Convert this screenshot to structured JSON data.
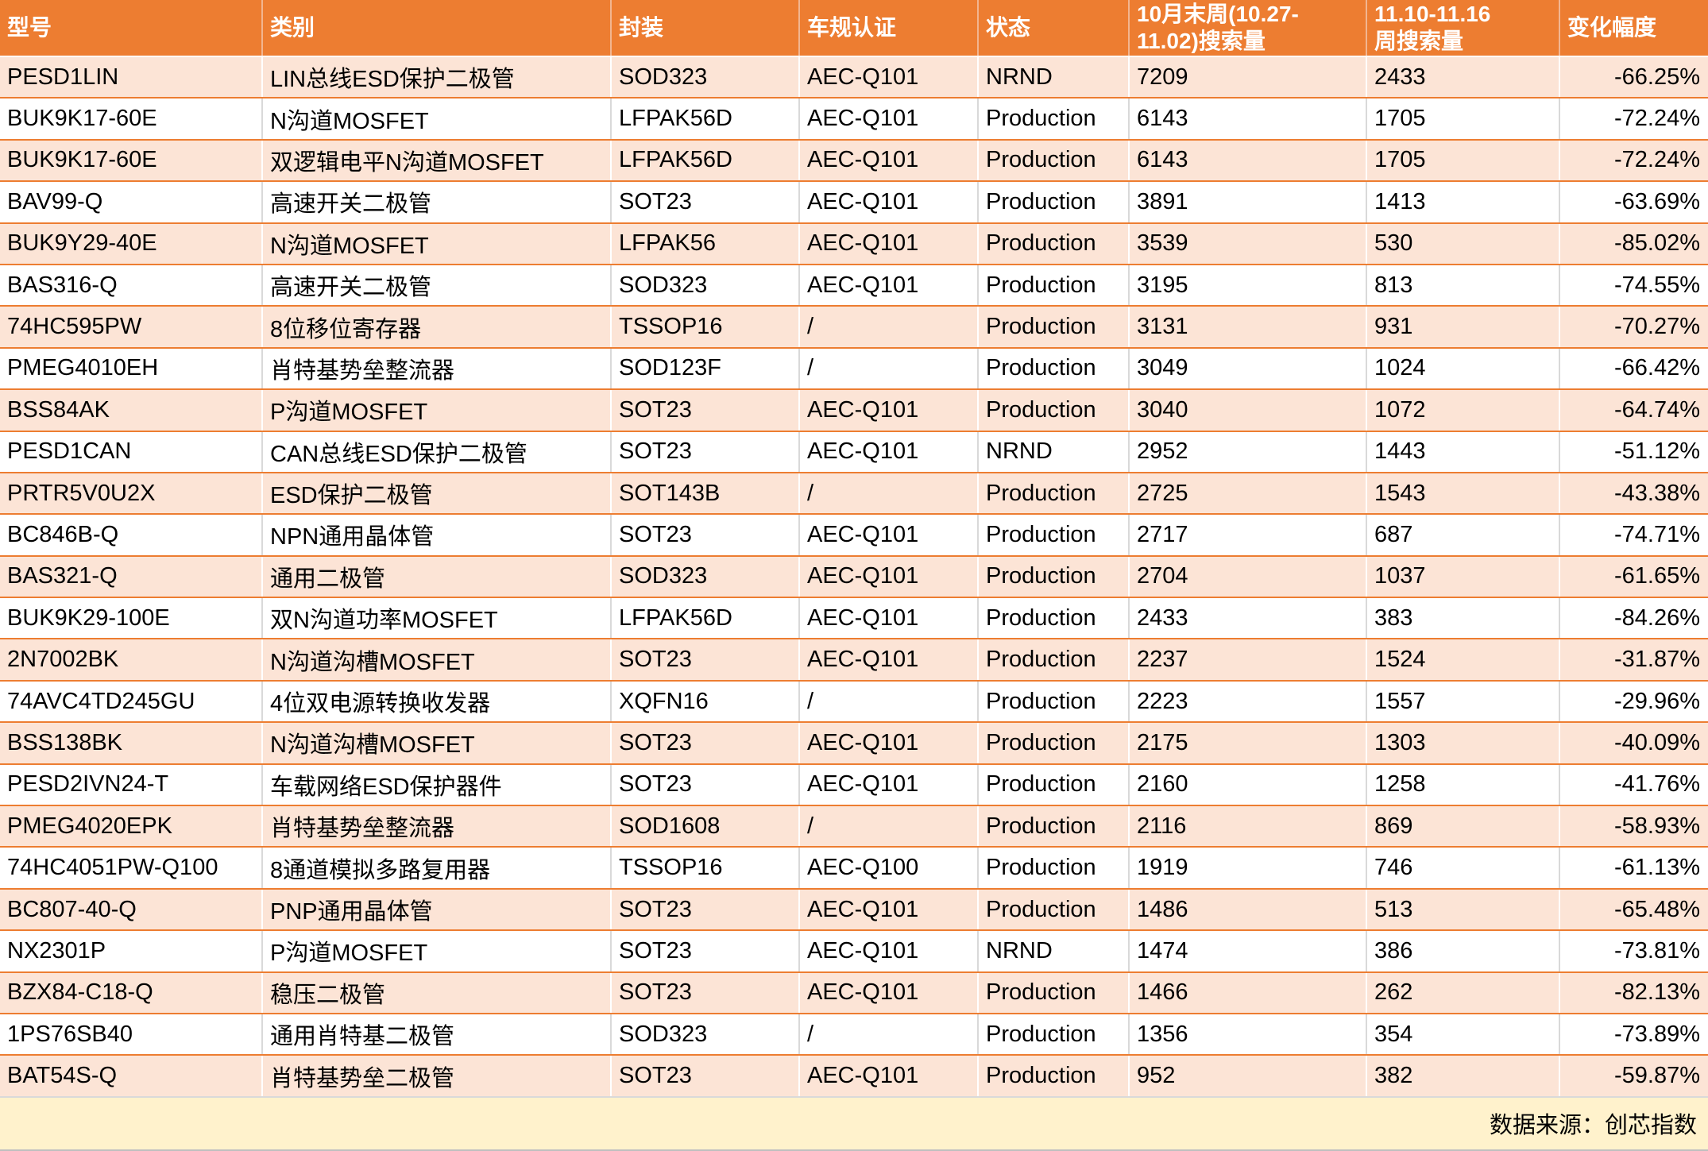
{
  "chart_data": {
    "type": "table",
    "title": "",
    "columns": [
      "型号",
      "类别",
      "封装",
      "车规认证",
      "状态",
      "10月末周(10.27-11.02)搜索量",
      "11.10-11.16周搜索量",
      "变化幅度"
    ],
    "header_display": [
      "型号",
      "类别",
      "封装",
      "车规认证",
      "状态",
      "10月末周(10.27-\n11.02)搜索量",
      "11.10-11.16\n周搜索量",
      "变化幅度"
    ],
    "rows": [
      {
        "model": "PESD1LIN",
        "category": "LIN总线ESD保护二极管",
        "package": "SOD323",
        "cert": "AEC-Q101",
        "status": "NRND",
        "w1": "7209",
        "w2": "2433",
        "change": "-66.25%"
      },
      {
        "model": "BUK9K17-60E",
        "category": "N沟道MOSFET",
        "package": "LFPAK56D",
        "cert": "AEC-Q101",
        "status": "Production",
        "w1": "6143",
        "w2": "1705",
        "change": "-72.24%"
      },
      {
        "model": "BUK9K17-60E",
        "category": "双逻辑电平N沟道MOSFET",
        "package": "LFPAK56D",
        "cert": "AEC-Q101",
        "status": "Production",
        "w1": "6143",
        "w2": "1705",
        "change": "-72.24%"
      },
      {
        "model": "BAV99-Q",
        "category": "高速开关二极管",
        "package": "SOT23",
        "cert": "AEC-Q101",
        "status": "Production",
        "w1": "3891",
        "w2": "1413",
        "change": "-63.69%"
      },
      {
        "model": "BUK9Y29-40E",
        "category": "N沟道MOSFET",
        "package": "LFPAK56",
        "cert": "AEC-Q101",
        "status": "Production",
        "w1": "3539",
        "w2": "530",
        "change": "-85.02%"
      },
      {
        "model": "BAS316-Q",
        "category": "高速开关二极管",
        "package": "SOD323",
        "cert": "AEC-Q101",
        "status": "Production",
        "w1": "3195",
        "w2": "813",
        "change": "-74.55%"
      },
      {
        "model": "74HC595PW",
        "category": "8位移位寄存器",
        "package": "TSSOP16",
        "cert": "/",
        "status": "Production",
        "w1": "3131",
        "w2": "931",
        "change": "-70.27%"
      },
      {
        "model": "PMEG4010EH",
        "category": "肖特基势垒整流器",
        "package": "SOD123F",
        "cert": "/",
        "status": "Production",
        "w1": "3049",
        "w2": "1024",
        "change": "-66.42%"
      },
      {
        "model": "BSS84AK",
        "category": "P沟道MOSFET",
        "package": "SOT23",
        "cert": "AEC-Q101",
        "status": "Production",
        "w1": "3040",
        "w2": "1072",
        "change": "-64.74%"
      },
      {
        "model": "PESD1CAN",
        "category": "CAN总线ESD保护二极管",
        "package": "SOT23",
        "cert": "AEC-Q101",
        "status": "NRND",
        "w1": "2952",
        "w2": "1443",
        "change": "-51.12%"
      },
      {
        "model": "PRTR5V0U2X",
        "category": "ESD保护二极管",
        "package": "SOT143B",
        "cert": "/",
        "status": "Production",
        "w1": "2725",
        "w2": "1543",
        "change": "-43.38%"
      },
      {
        "model": "BC846B-Q",
        "category": "NPN通用晶体管",
        "package": "SOT23",
        "cert": "AEC-Q101",
        "status": "Production",
        "w1": "2717",
        "w2": "687",
        "change": "-74.71%"
      },
      {
        "model": "BAS321-Q",
        "category": "通用二极管",
        "package": "SOD323",
        "cert": "AEC-Q101",
        "status": "Production",
        "w1": "2704",
        "w2": "1037",
        "change": "-61.65%"
      },
      {
        "model": "BUK9K29-100E",
        "category": "双N沟道功率MOSFET",
        "package": "LFPAK56D",
        "cert": "AEC-Q101",
        "status": "Production",
        "w1": "2433",
        "w2": "383",
        "change": "-84.26%"
      },
      {
        "model": "2N7002BK",
        "category": "N沟道沟槽MOSFET",
        "package": "SOT23",
        "cert": "AEC-Q101",
        "status": "Production",
        "w1": "2237",
        "w2": "1524",
        "change": "-31.87%"
      },
      {
        "model": "74AVC4TD245GU",
        "category": "4位双电源转换收发器",
        "package": "XQFN16",
        "cert": "/",
        "status": "Production",
        "w1": "2223",
        "w2": "1557",
        "change": "-29.96%"
      },
      {
        "model": "BSS138BK",
        "category": "N沟道沟槽MOSFET",
        "package": "SOT23",
        "cert": "AEC-Q101",
        "status": "Production",
        "w1": "2175",
        "w2": "1303",
        "change": "-40.09%"
      },
      {
        "model": "PESD2IVN24-T",
        "category": "车载网络ESD保护器件",
        "package": "SOT23",
        "cert": "AEC-Q101",
        "status": "Production",
        "w1": "2160",
        "w2": "1258",
        "change": "-41.76%"
      },
      {
        "model": "PMEG4020EPK",
        "category": "肖特基势垒整流器",
        "package": "SOD1608",
        "cert": "/",
        "status": "Production",
        "w1": "2116",
        "w2": "869",
        "change": "-58.93%"
      },
      {
        "model": "74HC4051PW-Q100",
        "category": "8通道模拟多路复用器",
        "package": "TSSOP16",
        "cert": "AEC-Q100",
        "status": "Production",
        "w1": "1919",
        "w2": "746",
        "change": "-61.13%"
      },
      {
        "model": "BC807-40-Q",
        "category": "PNP通用晶体管",
        "package": "SOT23",
        "cert": "AEC-Q101",
        "status": "Production",
        "w1": "1486",
        "w2": "513",
        "change": "-65.48%"
      },
      {
        "model": "NX2301P",
        "category": "P沟道MOSFET",
        "package": "SOT23",
        "cert": "AEC-Q101",
        "status": "NRND",
        "w1": "1474",
        "w2": "386",
        "change": "-73.81%"
      },
      {
        "model": "BZX84-C18-Q",
        "category": "稳压二极管",
        "package": "SOT23",
        "cert": "AEC-Q101",
        "status": "Production",
        "w1": "1466",
        "w2": "262",
        "change": "-82.13%"
      },
      {
        "model": "1PS76SB40",
        "category": "通用肖特基二极管",
        "package": "SOD323",
        "cert": "/",
        "status": "Production",
        "w1": "1356",
        "w2": "354",
        "change": "-73.89%"
      },
      {
        "model": "BAT54S-Q",
        "category": "肖特基势垒二极管",
        "package": "SOT23",
        "cert": "AEC-Q101",
        "status": "Production",
        "w1": "952",
        "w2": "382",
        "change": "-59.87%"
      }
    ],
    "source_note": "数据来源：创芯指数",
    "layout": {
      "legend": "none",
      "grid": "banded-rows"
    }
  },
  "colors": {
    "header_bg": "#ED7D31",
    "header_text": "#FFFFFF",
    "band_row_bg": "#FCE4D6",
    "plain_row_bg": "#FFFFFF",
    "footer_bg": "#FFF2CC",
    "row_divider": "#ED7D31",
    "col_divider_plain": "#D9D9D9",
    "col_divider_band": "#FFFFFF",
    "body_text": "#000000"
  }
}
